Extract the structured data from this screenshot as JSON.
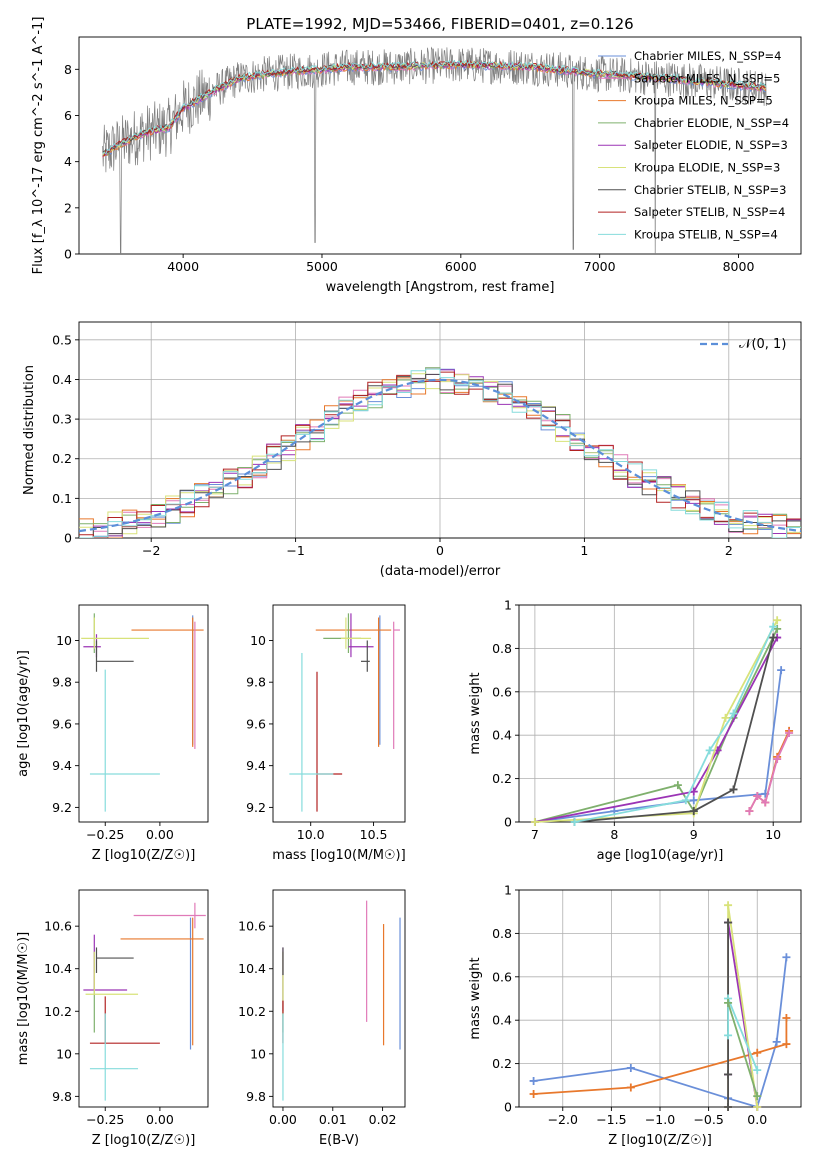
{
  "figure": {
    "title": "PLATE=1992, MJD=53466, FIBERID=0401, z=0.126"
  },
  "colors": {
    "chabrier_miles": "#6a8fd9",
    "salpeter_miles": "#e07ab8",
    "kroupa_miles": "#e8782c",
    "chabrier_elodie": "#7fb06d",
    "salpeter_elodie": "#9b34b5",
    "kroupa_elodie": "#d8e27a",
    "chabrier_stelib": "#505050",
    "salpeter_stelib": "#b22222",
    "kroupa_stelib": "#86dcdc",
    "gaussian": "#5b8fd9"
  },
  "chart_data": [
    {
      "id": "spectrum",
      "type": "line",
      "xlabel": "wavelength [Angstrom, rest frame]",
      "ylabel": "Flux [f_λ 10^-17 erg cm^-2 s^-1 A^-1]",
      "xlim": [
        3250,
        8450
      ],
      "ylim": [
        0,
        9.4
      ],
      "xticks": [
        4000,
        5000,
        6000,
        7000,
        8000
      ],
      "yticks": [
        0,
        2,
        4,
        6,
        8
      ],
      "legend_position": "right",
      "series": [
        {
          "name": "Chabrier MILES, N_SSP=4",
          "color_key": "chabrier_miles"
        },
        {
          "name": "Salpeter MILES, N_SSP=5",
          "color_key": "salpeter_miles"
        },
        {
          "name": "Kroupa MILES, N_SSP=5",
          "color_key": "kroupa_miles"
        },
        {
          "name": "Chabrier ELODIE, N_SSP=4",
          "color_key": "chabrier_elodie"
        },
        {
          "name": "Salpeter ELODIE, N_SSP=3",
          "color_key": "salpeter_elodie"
        },
        {
          "name": "Kroupa ELODIE, N_SSP=3",
          "color_key": "kroupa_elodie"
        },
        {
          "name": "Chabrier STELIB, N_SSP=3",
          "color_key": "chabrier_stelib"
        },
        {
          "name": "Salpeter STELIB, N_SSP=4",
          "color_key": "salpeter_stelib"
        },
        {
          "name": "Kroupa STELIB, N_SSP=4",
          "color_key": "kroupa_stelib"
        }
      ],
      "observed_color": "#7f7f7f",
      "model_continuum": [
        [
          3400,
          4.2
        ],
        [
          3500,
          4.6
        ],
        [
          3700,
          5.2
        ],
        [
          3900,
          5.5
        ],
        [
          4000,
          6.3
        ],
        [
          4200,
          7.0
        ],
        [
          4400,
          7.6
        ],
        [
          4600,
          7.8
        ],
        [
          4800,
          7.9
        ],
        [
          5000,
          8.0
        ],
        [
          5200,
          8.1
        ],
        [
          5500,
          8.1
        ],
        [
          6000,
          8.2
        ],
        [
          6500,
          8.1
        ],
        [
          7000,
          7.8
        ],
        [
          7500,
          7.6
        ],
        [
          8000,
          7.3
        ],
        [
          8200,
          7.2
        ]
      ],
      "observed_dips": [
        [
          3550,
          0.0
        ],
        [
          4950,
          0.5
        ],
        [
          6810,
          0.2
        ],
        [
          7400,
          0.0
        ]
      ]
    },
    {
      "id": "residuals",
      "type": "line",
      "xlabel": "(data-model)/error",
      "ylabel": "Normed distribution",
      "xlim": [
        -2.5,
        2.5
      ],
      "ylim": [
        0,
        0.545
      ],
      "xticks": [
        -2,
        -1,
        0,
        1,
        2
      ],
      "yticks": [
        0.0,
        0.1,
        0.2,
        0.3,
        0.4,
        0.5
      ],
      "grid": true,
      "legend_position": "top-right",
      "gaussian_label": "𝒩(0, 1)",
      "bin_width": 0.1,
      "bin_start": -2.5,
      "bin_count": 50
    },
    {
      "id": "age_vs_Z",
      "type": "scatter",
      "xlabel": "Z [log10(Z/Z☉)]",
      "ylabel": "age [log10(age/yr)]",
      "xlim": [
        -0.37,
        0.22
      ],
      "ylim": [
        9.13,
        10.17
      ],
      "xticks": [
        -0.25,
        0.0
      ],
      "xtick_labels": [
        "−0.25",
        "0.00"
      ],
      "yticks": [
        9.2,
        9.4,
        9.6,
        9.8,
        10.0
      ],
      "errorbars": [
        {
          "color_key": "chabrier_miles",
          "x": 0.15,
          "y": 10.05,
          "xerr": [
            0.0,
            0.0
          ],
          "yerr": [
            0.55,
            0.07
          ]
        },
        {
          "color_key": "kroupa_miles",
          "x": 0.15,
          "y": 10.05,
          "xerr": [
            0.28,
            0.05
          ],
          "yerr": [
            0.56,
            0.06
          ]
        },
        {
          "color_key": "salpeter_miles",
          "x": 0.16,
          "y": 10.05,
          "xerr": [
            0.0,
            0.0
          ],
          "yerr": [
            0.57,
            0.04
          ]
        },
        {
          "color_key": "chabrier_elodie",
          "x": -0.3,
          "y": 10.01,
          "xerr": [
            0.0,
            0.0
          ],
          "yerr": [
            0.07,
            0.12
          ]
        },
        {
          "color_key": "salpeter_elodie",
          "x": -0.29,
          "y": 9.97,
          "xerr": [
            0.06,
            0.02
          ],
          "yerr": [
            0.05,
            0.06
          ]
        },
        {
          "color_key": "kroupa_elodie",
          "x": -0.3,
          "y": 10.01,
          "xerr": [
            0.06,
            0.25
          ],
          "yerr": [
            0.05,
            0.1
          ]
        },
        {
          "color_key": "chabrier_stelib",
          "x": -0.29,
          "y": 9.9,
          "xerr": [
            0.0,
            0.17
          ],
          "yerr": [
            0.05,
            0.1
          ]
        },
        {
          "color_key": "salpeter_stelib",
          "x": -0.25,
          "y": 9.36,
          "xerr": [
            0.0,
            0.0
          ],
          "yerr": [
            0.0,
            0.0
          ]
        },
        {
          "color_key": "kroupa_stelib",
          "x": -0.25,
          "y": 9.36,
          "xerr": [
            0.07,
            0.25
          ],
          "yerr": [
            0.18,
            0.5
          ]
        }
      ]
    },
    {
      "id": "age_vs_mass",
      "type": "scatter",
      "xlabel": "mass [log10(M/M☉)]",
      "ylabel": "",
      "xlim": [
        9.7,
        10.75
      ],
      "ylim": [
        9.13,
        10.17
      ],
      "xticks": [
        10.0,
        10.5
      ],
      "xtick_labels": [
        "10.0",
        "10.5"
      ],
      "yticks": [
        9.2,
        9.4,
        9.6,
        9.8,
        10.0
      ],
      "errorbars": [
        {
          "color_key": "chabrier_miles",
          "x": 10.55,
          "y": 10.05,
          "xerr": [
            0.0,
            0.0
          ],
          "yerr": [
            0.55,
            0.07
          ]
        },
        {
          "color_key": "kroupa_miles",
          "x": 10.54,
          "y": 10.05,
          "xerr": [
            0.5,
            0.1
          ],
          "yerr": [
            0.56,
            0.06
          ]
        },
        {
          "color_key": "salpeter_miles",
          "x": 10.66,
          "y": 10.05,
          "xerr": [
            0.0,
            0.05
          ],
          "yerr": [
            0.57,
            0.04
          ]
        },
        {
          "color_key": "chabrier_elodie",
          "x": 10.3,
          "y": 10.01,
          "xerr": [
            0.2,
            0.1
          ],
          "yerr": [
            0.07,
            0.12
          ]
        },
        {
          "color_key": "salpeter_elodie",
          "x": 10.32,
          "y": 9.97,
          "xerr": [
            0.02,
            0.18
          ],
          "yerr": [
            0.05,
            0.16
          ]
        },
        {
          "color_key": "kroupa_elodie",
          "x": 10.28,
          "y": 10.01,
          "xerr": [
            0.04,
            0.2
          ],
          "yerr": [
            0.05,
            0.1
          ]
        },
        {
          "color_key": "chabrier_stelib",
          "x": 10.45,
          "y": 9.9,
          "xerr": [
            0.05,
            0.02
          ],
          "yerr": [
            0.05,
            0.1
          ]
        },
        {
          "color_key": "salpeter_stelib",
          "x": 10.05,
          "y": 9.36,
          "xerr": [
            0.0,
            0.2
          ],
          "yerr": [
            0.18,
            0.49
          ]
        },
        {
          "color_key": "kroupa_stelib",
          "x": 9.93,
          "y": 9.36,
          "xerr": [
            0.1,
            0.25
          ],
          "yerr": [
            0.18,
            0.58
          ]
        }
      ]
    },
    {
      "id": "weight_vs_age",
      "type": "line",
      "xlabel": "age [log10(age/yr)]",
      "ylabel": "mass weight",
      "xlim": [
        6.8,
        10.35
      ],
      "ylim": [
        0,
        1.0
      ],
      "xticks": [
        7,
        8,
        9,
        10
      ],
      "yticks": [
        0.0,
        0.2,
        0.4,
        0.6,
        0.8,
        1.0
      ],
      "grid": true,
      "series": [
        {
          "color_key": "chabrier_miles",
          "x": [
            7.0,
            8.0,
            9.0,
            9.9,
            10.1
          ],
          "y": [
            0.0,
            0.05,
            0.1,
            0.13,
            0.7
          ]
        },
        {
          "color_key": "kroupa_miles",
          "x": [
            9.7,
            9.8,
            9.9,
            10.05,
            10.2
          ],
          "y": [
            0.05,
            0.12,
            0.09,
            0.3,
            0.42
          ]
        },
        {
          "color_key": "salpeter_miles",
          "x": [
            9.7,
            9.8,
            9.9,
            10.05,
            10.2
          ],
          "y": [
            0.05,
            0.12,
            0.09,
            0.29,
            0.41
          ]
        },
        {
          "color_key": "chabrier_elodie",
          "x": [
            7.0,
            8.8,
            9.0,
            9.5,
            10.05
          ],
          "y": [
            0.0,
            0.17,
            0.05,
            0.48,
            0.89
          ]
        },
        {
          "color_key": "salpeter_elodie",
          "x": [
            7.0,
            9.0,
            9.3,
            10.05
          ],
          "y": [
            0.0,
            0.14,
            0.33,
            0.85
          ]
        },
        {
          "color_key": "kroupa_elodie",
          "x": [
            7.0,
            9.0,
            9.4,
            10.05
          ],
          "y": [
            0.0,
            0.04,
            0.48,
            0.93
          ]
        },
        {
          "color_key": "chabrier_stelib",
          "x": [
            7.5,
            9.0,
            9.5,
            10.0
          ],
          "y": [
            0.0,
            0.05,
            0.15,
            0.85
          ]
        },
        {
          "color_key": "kroupa_stelib",
          "x": [
            7.5,
            8.9,
            9.2,
            9.5,
            10.0
          ],
          "y": [
            0.0,
            0.1,
            0.33,
            0.5,
            0.9
          ]
        }
      ]
    },
    {
      "id": "mass_vs_Z",
      "type": "scatter",
      "xlabel": "Z [log10(Z/Z☉)]",
      "ylabel": "mass [log10(M/M☉)]",
      "xlim": [
        -0.37,
        0.22
      ],
      "ylim": [
        9.75,
        10.77
      ],
      "xticks": [
        -0.25,
        0.0
      ],
      "xtick_labels": [
        "−0.25",
        "0.00"
      ],
      "yticks": [
        9.8,
        10.0,
        10.2,
        10.4,
        10.6
      ],
      "errorbars": [
        {
          "color_key": "chabrier_miles",
          "x": 0.14,
          "y": 10.55,
          "xerr": [
            0.0,
            0.0
          ],
          "yerr": [
            0.53,
            0.09
          ]
        },
        {
          "color_key": "kroupa_miles",
          "x": 0.15,
          "y": 10.54,
          "xerr": [
            0.33,
            0.05
          ],
          "yerr": [
            0.5,
            0.1
          ]
        },
        {
          "color_key": "salpeter_miles",
          "x": 0.16,
          "y": 10.65,
          "xerr": [
            0.28,
            0.05
          ],
          "yerr": [
            0.06,
            0.06
          ]
        },
        {
          "color_key": "chabrier_elodie",
          "x": -0.3,
          "y": 10.3,
          "xerr": [
            0.0,
            0.0
          ],
          "yerr": [
            0.2,
            0.18
          ]
        },
        {
          "color_key": "salpeter_elodie",
          "x": -0.3,
          "y": 10.3,
          "xerr": [
            0.05,
            0.15
          ],
          "yerr": [
            0.0,
            0.26
          ]
        },
        {
          "color_key": "kroupa_elodie",
          "x": -0.3,
          "y": 10.28,
          "xerr": [
            0.04,
            0.2
          ],
          "yerr": [
            0.0,
            0.2
          ]
        },
        {
          "color_key": "chabrier_stelib",
          "x": -0.29,
          "y": 10.45,
          "xerr": [
            0.0,
            0.17
          ],
          "yerr": [
            0.07,
            0.05
          ]
        },
        {
          "color_key": "salpeter_stelib",
          "x": -0.25,
          "y": 10.05,
          "xerr": [
            0.07,
            0.25
          ],
          "yerr": [
            0.0,
            0.22
          ]
        },
        {
          "color_key": "kroupa_stelib",
          "x": -0.25,
          "y": 9.93,
          "xerr": [
            0.07,
            0.15
          ],
          "yerr": [
            0.15,
            0.26
          ]
        }
      ]
    },
    {
      "id": "mass_vs_ebv",
      "type": "scatter",
      "xlabel": "E(B-V)",
      "ylabel": "",
      "xlim": [
        -0.002,
        0.0245
      ],
      "ylim": [
        9.75,
        10.77
      ],
      "xticks": [
        0.0,
        0.01,
        0.02
      ],
      "xtick_labels": [
        "0.00",
        "0.01",
        "0.02"
      ],
      "yticks": [
        9.8,
        10.0,
        10.2,
        10.4,
        10.6
      ],
      "errorbars": [
        {
          "color_key": "chabrier_miles",
          "x": 0.0235,
          "y": 10.3,
          "xerr": [
            0.0,
            0.0
          ],
          "yerr": [
            0.28,
            0.34
          ]
        },
        {
          "color_key": "kroupa_miles",
          "x": 0.0202,
          "y": 10.3,
          "xerr": [
            0.0,
            0.0
          ],
          "yerr": [
            0.26,
            0.31
          ]
        },
        {
          "color_key": "salpeter_miles",
          "x": 0.0168,
          "y": 10.42,
          "xerr": [
            0.0,
            0.0
          ],
          "yerr": [
            0.27,
            0.3
          ]
        },
        {
          "color_key": "chabrier_elodie",
          "x": 0.0,
          "y": 10.3,
          "xerr": [
            0.0,
            0.0
          ],
          "yerr": [
            0.2,
            0.18
          ]
        },
        {
          "color_key": "salpeter_elodie",
          "x": 0.0,
          "y": 10.3,
          "xerr": [
            0.0,
            0.0
          ],
          "yerr": [
            0.1,
            0.2
          ]
        },
        {
          "color_key": "kroupa_elodie",
          "x": 0.0,
          "y": 10.28,
          "xerr": [
            0.0,
            0.0
          ],
          "yerr": [
            0.1,
            0.2
          ]
        },
        {
          "color_key": "chabrier_stelib",
          "x": 0.0,
          "y": 10.45,
          "xerr": [
            0.0,
            0.0
          ],
          "yerr": [
            0.08,
            0.05
          ]
        },
        {
          "color_key": "salpeter_stelib",
          "x": 0.0,
          "y": 10.05,
          "xerr": [
            0.0,
            0.0
          ],
          "yerr": [
            0.0,
            0.2
          ]
        },
        {
          "color_key": "kroupa_stelib",
          "x": 0.0,
          "y": 9.93,
          "xerr": [
            0.0,
            0.0
          ],
          "yerr": [
            0.15,
            0.26
          ]
        }
      ]
    },
    {
      "id": "weight_vs_Z",
      "type": "line",
      "xlabel": "Z [log10(Z/Z☉)]",
      "ylabel": "mass weight",
      "xlim": [
        -2.45,
        0.45
      ],
      "ylim": [
        0,
        1.0
      ],
      "xticks": [
        -2.0,
        -1.5,
        -1.0,
        -0.5,
        0.0
      ],
      "xtick_labels": [
        "−2.0",
        "−1.5",
        "−1.0",
        "−0.5",
        "0.0"
      ],
      "yticks": [
        0.0,
        0.2,
        0.4,
        0.6,
        0.8,
        1.0
      ],
      "grid": true,
      "series": [
        {
          "color_key": "chabrier_miles",
          "x": [
            -2.3,
            -1.3,
            -0.3,
            0.0,
            0.2,
            0.3
          ],
          "y": [
            0.12,
            0.18,
            0.04,
            0.0,
            0.3,
            0.69
          ]
        },
        {
          "color_key": "kroupa_miles",
          "x": [
            -2.3,
            -1.3,
            0.0,
            0.3,
            0.3
          ],
          "y": [
            0.06,
            0.09,
            0.25,
            0.29,
            0.41
          ]
        },
        {
          "color_key": "salpeter_elodie",
          "x": [
            -0.3,
            -0.3,
            -0.3,
            -0.3,
            0.0
          ],
          "y": [
            0.0,
            0.15,
            0.85,
            0.85,
            0.0
          ]
        },
        {
          "color_key": "kroupa_elodie",
          "x": [
            -0.3,
            -0.3,
            0.0
          ],
          "y": [
            0.0,
            0.93,
            0.0
          ]
        },
        {
          "color_key": "chabrier_stelib",
          "x": [
            -0.3,
            -0.3,
            -0.3
          ],
          "y": [
            0.0,
            0.15,
            0.85
          ]
        },
        {
          "color_key": "kroupa_stelib",
          "x": [
            -0.3,
            -0.3,
            0.0
          ],
          "y": [
            0.33,
            0.5,
            0.17
          ]
        },
        {
          "color_key": "chabrier_elodie",
          "x": [
            -0.3,
            0.0
          ],
          "y": [
            0.48,
            0.05
          ]
        }
      ]
    }
  ]
}
